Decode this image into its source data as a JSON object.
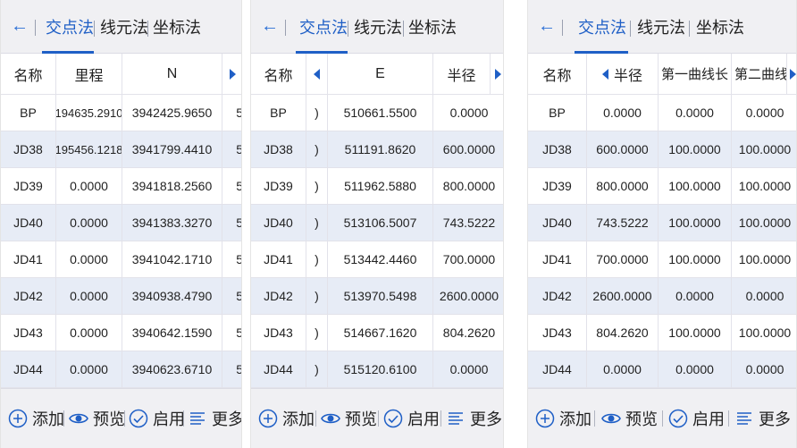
{
  "tabs": [
    "交点法",
    "线元法",
    "坐标法"
  ],
  "toolbar": {
    "add": "添加",
    "preview": "预览",
    "enable": "启用",
    "more": "更多"
  },
  "panels": [
    {
      "headers": [
        "名称",
        "里程",
        "N"
      ],
      "rows": [
        [
          "BP",
          "194635.2910",
          "3942425.9650",
          "5"
        ],
        [
          "JD38",
          "195456.1218",
          "3941799.4410",
          "5"
        ],
        [
          "JD39",
          "0.0000",
          "3941818.2560",
          "5"
        ],
        [
          "JD40",
          "0.0000",
          "3941383.3270",
          "5"
        ],
        [
          "JD41",
          "0.0000",
          "3941042.1710",
          "5"
        ],
        [
          "JD42",
          "0.0000",
          "3940938.4790",
          "5"
        ],
        [
          "JD43",
          "0.0000",
          "3940642.1590",
          "5"
        ],
        [
          "JD44",
          "0.0000",
          "3940623.6710",
          "5"
        ]
      ]
    },
    {
      "headers": [
        "名称",
        "E",
        "半径"
      ],
      "rows": [
        [
          "BP",
          ")",
          "510661.5500",
          "0.0000"
        ],
        [
          "JD38",
          ")",
          "511191.8620",
          "600.0000"
        ],
        [
          "JD39",
          ")",
          "511962.5880",
          "800.0000"
        ],
        [
          "JD40",
          ")",
          "513106.5007",
          "743.5222"
        ],
        [
          "JD41",
          ")",
          "513442.4460",
          "700.0000"
        ],
        [
          "JD42",
          ")",
          "513970.5498",
          "2600.0000"
        ],
        [
          "JD43",
          ")",
          "514667.1620",
          "804.2620"
        ],
        [
          "JD44",
          ")",
          "515120.6100",
          "0.0000"
        ]
      ]
    },
    {
      "headers": [
        "名称",
        "半径",
        "第一曲线长",
        "第二曲线"
      ],
      "rows": [
        [
          "BP",
          "0.0000",
          "0.0000",
          "0.0000"
        ],
        [
          "JD38",
          "600.0000",
          "100.0000",
          "100.0000"
        ],
        [
          "JD39",
          "800.0000",
          "100.0000",
          "100.0000"
        ],
        [
          "JD40",
          "743.5222",
          "100.0000",
          "100.0000"
        ],
        [
          "JD41",
          "700.0000",
          "100.0000",
          "100.0000"
        ],
        [
          "JD42",
          "2600.0000",
          "0.0000",
          "0.0000"
        ],
        [
          "JD43",
          "804.2620",
          "100.0000",
          "100.0000"
        ],
        [
          "JD44",
          "0.0000",
          "0.0000",
          "0.0000"
        ]
      ]
    }
  ]
}
